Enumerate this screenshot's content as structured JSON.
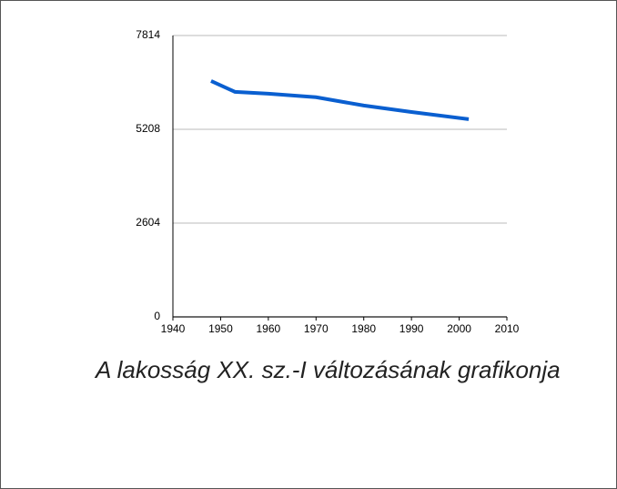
{
  "chart_data": {
    "type": "line",
    "caption": "A lakosság XX. sz.-I változásának grafikonja",
    "x": [
      1948,
      1953,
      1960,
      1970,
      1980,
      1990,
      2002
    ],
    "series": [
      {
        "name": "Lakosság",
        "color": "#0a5fd0",
        "values": [
          6550,
          6250,
          6200,
          6100,
          5870,
          5690,
          5490
        ]
      }
    ],
    "xlim": [
      1940,
      2010
    ],
    "xticks": [
      1940,
      1950,
      1960,
      1970,
      1980,
      1990,
      2000,
      2010
    ],
    "ylim": [
      0,
      7814
    ],
    "yticks": [
      0,
      2604,
      5208,
      7814
    ],
    "grid": true
  }
}
